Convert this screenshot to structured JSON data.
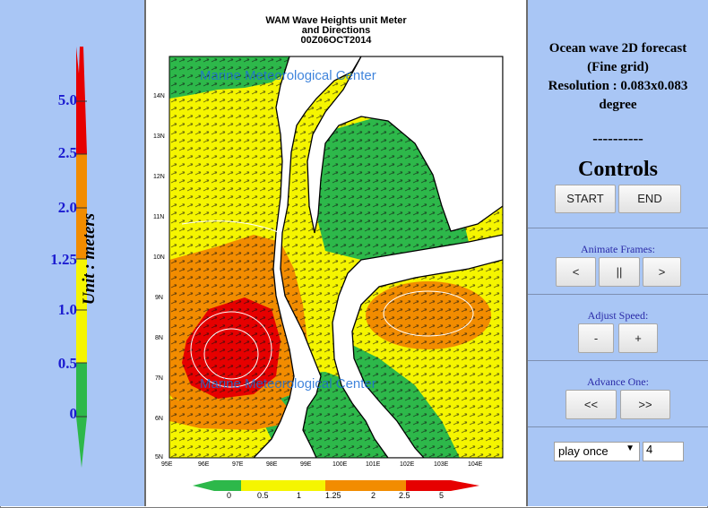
{
  "legend": {
    "levels": [
      "5.0",
      "2.5",
      "2.0",
      "1.25",
      "1.0",
      "0.5",
      "0"
    ],
    "unit_label": "Unit : meters",
    "colors": {
      "red": "#e60000",
      "orange": "#f28c00",
      "yellow": "#f5f500",
      "green": "#2db84a"
    }
  },
  "map": {
    "title_lines": [
      "WAM Wave Heights unit Meter",
      "and Directions",
      "00Z06OCT2014"
    ],
    "watermark": "Marine Meteorological Center",
    "lat_ticks": [
      "14N",
      "13N",
      "12N",
      "11N",
      "10N",
      "9N",
      "8N",
      "7N",
      "6N",
      "5N"
    ],
    "lon_ticks": [
      "95E",
      "96E",
      "97E",
      "98E",
      "99E",
      "100E",
      "101E",
      "102E",
      "103E",
      "104E"
    ],
    "colorbar_labels": [
      "0",
      "0.5",
      "1",
      "1.25",
      "2",
      "2.5",
      "5"
    ]
  },
  "controls": {
    "title_lines": [
      "Ocean wave 2D forecast",
      "(Fine grid)",
      "Resolution : 0.083x0.083",
      "degree"
    ],
    "dashes": "----------",
    "heading": "Controls",
    "start_label": "START",
    "end_label": "END",
    "animate_label": "Animate Frames:",
    "prev_label": "<",
    "pause_label": "||",
    "next_label": ">",
    "speed_label": "Adjust Speed:",
    "slower_label": "-",
    "faster_label": "+",
    "advance_label": "Advance One:",
    "back_label": "<<",
    "forward_label": ">>",
    "play_mode": "play once",
    "frame_value": "4"
  }
}
